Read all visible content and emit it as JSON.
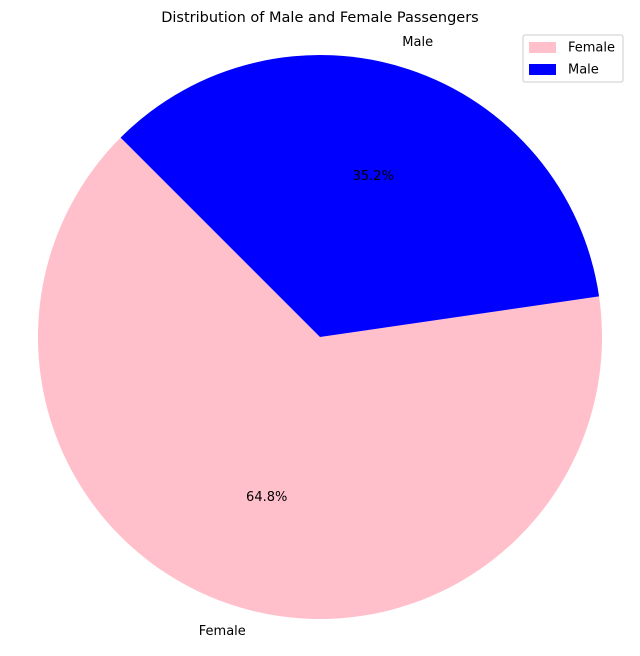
{
  "chart_data": {
    "type": "pie",
    "title": "Distribution of Male and Female Passengers",
    "categories": [
      "Female",
      "Male"
    ],
    "values": [
      64.8,
      35.2
    ],
    "percent_labels": [
      "64.8%",
      "35.2%"
    ],
    "colors": [
      "#ffc0cb",
      "#0000ff"
    ],
    "start_angle_deg": 135,
    "legend": {
      "placement": "top-right",
      "entries": [
        "Female",
        "Male"
      ]
    }
  }
}
